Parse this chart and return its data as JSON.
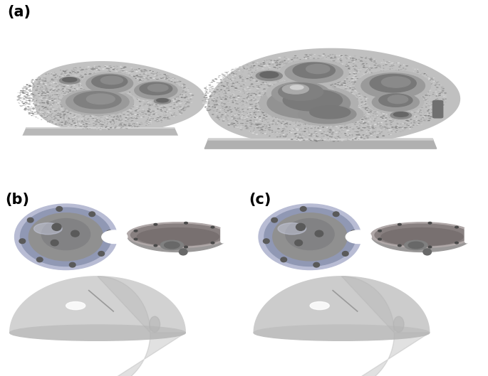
{
  "panel_labels": [
    "(a)",
    "(b)",
    "(c)"
  ],
  "label_fontsize": 15,
  "label_fontweight": "bold",
  "background_color": "#ffffff",
  "label_color": "#000000",
  "fig_width": 6.85,
  "fig_height": 5.29,
  "dpi": 100,
  "red_circle_color": "#ff0000",
  "red_circle_linewidth": 1.8,
  "speckle_base_light": "#c8c8c8",
  "speckle_base_dark": "#a0a0a0",
  "hole_rim": "#b0b0b0",
  "hole_inner": "#787878",
  "hole_deep": "#505050",
  "smooth_surface": "#d4d4d4",
  "smooth_surface_dark": "#b8b8b8",
  "augment_edge": "#c0c0c0",
  "cup_lavender": "#b8bcd4",
  "cup_lavender_dark": "#9098b0",
  "cup_gray": "#909090",
  "cup_gray_dark": "#787878",
  "hemi_light": "#d8d8d8",
  "hemi_mid": "#c0c0c0",
  "hemi_dark": "#a8a8a8"
}
